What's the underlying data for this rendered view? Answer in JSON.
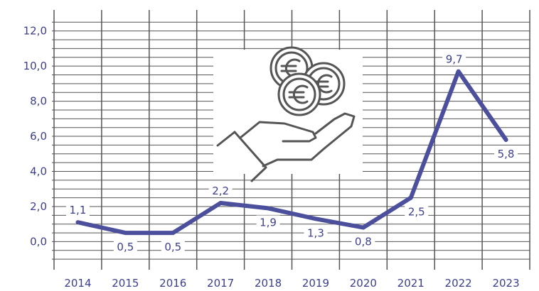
{
  "chart_data": {
    "type": "line",
    "x": [
      "2014",
      "2015",
      "2016",
      "2017",
      "2018",
      "2019",
      "2020",
      "2021",
      "2022",
      "2023"
    ],
    "series": [
      {
        "values": [
          1.1,
          0.5,
          0.5,
          2.2,
          1.9,
          1.3,
          0.8,
          2.5,
          9.7,
          5.8
        ]
      }
    ],
    "data_labels": [
      "1,1",
      "0,5",
      "0,5",
      "2,2",
      "1,9",
      "1,3",
      "0,8",
      "2,5",
      "9,7",
      "5,8"
    ],
    "y_ticks": [
      0,
      2,
      4,
      6,
      8,
      10,
      12
    ],
    "y_tick_labels": [
      "0,0",
      "2,0",
      "4,0",
      "6,0",
      "8,0",
      "10,0",
      "12,0"
    ],
    "ylim": [
      -1.6,
      13.2
    ],
    "grid": true,
    "legend": "none",
    "title": "",
    "xlabel": "",
    "ylabel": "",
    "decoration_icon": "hand-holding-euro-coins-icon",
    "colors": {
      "line": "#4b4f9c",
      "grid": "#555555",
      "text": "#3b3f8c",
      "icon": "#555555"
    }
  }
}
